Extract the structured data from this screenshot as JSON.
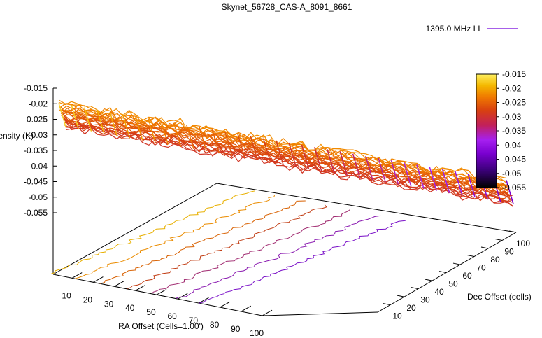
{
  "chart_data": {
    "type": "surface3d",
    "title": "Skynet_56728_CAS-A_8091_8661",
    "legend": {
      "label": "1395.0 MHz LL",
      "color": "#8a2be2",
      "placement": "top-right"
    },
    "xlabel": "RA Offset (Cells=1.00')",
    "ylabel": "Dec Offset (cells)",
    "zlabel": "Intensity (K)",
    "x_ticks": [
      "10",
      "20",
      "30",
      "40",
      "50",
      "60",
      "70",
      "80",
      "90",
      "100"
    ],
    "y_ticks": [
      "10",
      "20",
      "30",
      "40",
      "50",
      "60",
      "70",
      "80",
      "90",
      "100"
    ],
    "z_ticks": [
      "-0.015",
      "-0.02",
      "-0.025",
      "-0.03",
      "-0.035",
      "-0.04",
      "-0.045",
      "-0.05",
      "-0.055"
    ],
    "xlim": [
      1,
      100
    ],
    "ylim": [
      1,
      100
    ],
    "zlim": [
      -0.055,
      -0.015
    ],
    "colorbar": {
      "ticks": [
        "-0.015",
        "-0.02",
        "-0.025",
        "-0.03",
        "-0.035",
        "-0.04",
        "-0.045",
        "-0.05",
        "-0.055"
      ],
      "range": [
        -0.055,
        -0.015
      ],
      "palette": [
        "#000000",
        "#3a0077",
        "#7a00d0",
        "#a620f0",
        "#c2205a",
        "#d84010",
        "#f07a00",
        "#f4b800",
        "#fff060"
      ]
    },
    "surface_trend": {
      "z_at_low_dec": -0.018,
      "z_at_high_dec": -0.045
    },
    "contours": [
      {
        "level": -0.02,
        "color": "#e8b000"
      },
      {
        "level": -0.025,
        "color": "#ea8c00"
      },
      {
        "level": -0.03,
        "color": "#d86000"
      },
      {
        "level": -0.035,
        "color": "#c03a10"
      },
      {
        "level": -0.04,
        "color": "#a02a70"
      },
      {
        "level": -0.045,
        "color": "#8a1ab0"
      },
      {
        "level": -0.05,
        "color": "#7a10c8"
      }
    ]
  }
}
